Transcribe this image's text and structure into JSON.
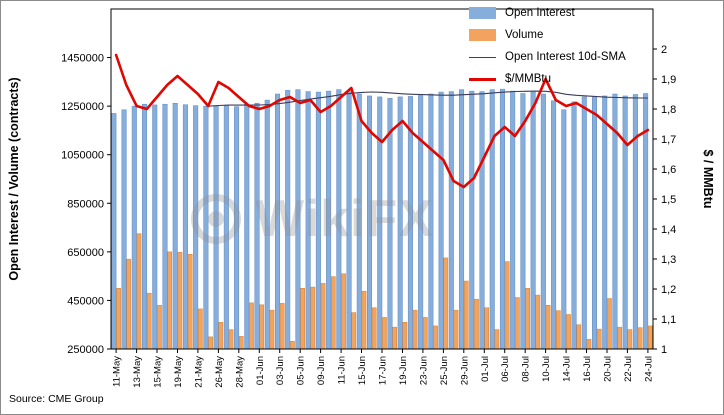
{
  "source": "Source: CME Group",
  "watermark": "WikiFX",
  "legend": {
    "items": [
      {
        "label": "Open Interest",
        "swatch": "patch",
        "color": "#85AEDD"
      },
      {
        "label": "Volume",
        "swatch": "patch",
        "color": "#F2A45F"
      },
      {
        "label": "Open Interest 10d-SMA",
        "swatch": "thinline",
        "color": "#3C3C5C"
      },
      {
        "label": "$/MMBtu",
        "swatch": "thickline",
        "color": "#E10600"
      }
    ]
  },
  "chart_data": {
    "type": "combo",
    "title": "",
    "legend_position": "upper right",
    "grid": false,
    "x_tick_labels_every": 2,
    "categories": [
      "11-May",
      "12-May",
      "13-May",
      "14-May",
      "15-May",
      "18-May",
      "19-May",
      "20-May",
      "21-May",
      "22-May",
      "26-May",
      "27-May",
      "28-May",
      "29-May",
      "01-Jun",
      "02-Jun",
      "03-Jun",
      "04-Jun",
      "05-Jun",
      "08-Jun",
      "09-Jun",
      "10-Jun",
      "11-Jun",
      "12-Jun",
      "15-Jun",
      "16-Jun",
      "17-Jun",
      "18-Jun",
      "19-Jun",
      "22-Jun",
      "23-Jun",
      "24-Jun",
      "25-Jun",
      "26-Jun",
      "29-Jun",
      "30-Jun",
      "01-Jul",
      "02-Jul",
      "06-Jul",
      "07-Jul",
      "08-Jul",
      "09-Jul",
      "10-Jul",
      "13-Jul",
      "14-Jul",
      "15-Jul",
      "16-Jul",
      "17-Jul",
      "20-Jul",
      "21-Jul",
      "22-Jul",
      "23-Jul",
      "24-Jul"
    ],
    "left_axis": {
      "label": "Open Interest / Volume (contracts)",
      "min": 250000,
      "max": 1650000,
      "tick_values": [
        250000,
        450000,
        650000,
        850000,
        1050000,
        1250000,
        1450000
      ]
    },
    "right_axis": {
      "label": "$ / MMBtu",
      "min": 1,
      "max": 2.1333,
      "tick_values": [
        1,
        1.1,
        1.2,
        1.3,
        1.4,
        1.5,
        1.6,
        1.7,
        1.8,
        1.9,
        2
      ],
      "tick_labels": [
        "1",
        "1,1",
        "1,2",
        "1,3",
        "1,4",
        "1,5",
        "1,6",
        "1,7",
        "1,8",
        "1,9",
        "2"
      ]
    },
    "series": [
      {
        "name": "Open Interest",
        "type": "bar",
        "axis": "left",
        "color": "#85AEDD",
        "edge": "#5E88BE",
        "values": [
          1220000,
          1235000,
          1250000,
          1258000,
          1255000,
          1258000,
          1262000,
          1256000,
          1252000,
          1250000,
          1250000,
          1252000,
          1248000,
          1258000,
          1262000,
          1275000,
          1300000,
          1315000,
          1318000,
          1310000,
          1308000,
          1312000,
          1318000,
          1310000,
          1300000,
          1292000,
          1288000,
          1282000,
          1288000,
          1290000,
          1294000,
          1300000,
          1308000,
          1310000,
          1318000,
          1312000,
          1310000,
          1318000,
          1320000,
          1312000,
          1302000,
          1308000,
          1300000,
          1272000,
          1235000,
          1268000,
          1288000,
          1290000,
          1292000,
          1300000,
          1292000,
          1298000,
          1302000
        ]
      },
      {
        "name": "Volume",
        "type": "bar",
        "axis": "left",
        "color": "#F2A45F",
        "edge": "#D08035",
        "values": [
          500000,
          620000,
          725000,
          480000,
          430000,
          650000,
          648000,
          640000,
          415000,
          300000,
          360000,
          330000,
          302000,
          440000,
          432000,
          410000,
          438000,
          282000,
          500000,
          505000,
          520000,
          548000,
          560000,
          400000,
          488000,
          420000,
          380000,
          340000,
          360000,
          410000,
          380000,
          345000,
          625000,
          410000,
          530000,
          455000,
          420000,
          330000,
          610000,
          462000,
          500000,
          472000,
          430000,
          408000,
          392000,
          350000,
          290000,
          332000,
          458000,
          340000,
          330000,
          338000,
          345000
        ]
      },
      {
        "name": "Open Interest 10d-SMA",
        "type": "line",
        "axis": "left",
        "color": "#3C3C5C",
        "width": 1.1,
        "derived": "sma",
        "window": 10,
        "of": "Open Interest"
      },
      {
        "name": "$/MMBtu",
        "type": "line",
        "axis": "right",
        "color": "#E10600",
        "width": 2.6,
        "values": [
          1.98,
          1.88,
          1.81,
          1.8,
          1.84,
          1.88,
          1.91,
          1.88,
          1.85,
          1.81,
          1.89,
          1.87,
          1.84,
          1.81,
          1.8,
          1.81,
          1.83,
          1.84,
          1.82,
          1.83,
          1.79,
          1.81,
          1.84,
          1.87,
          1.76,
          1.72,
          1.69,
          1.73,
          1.76,
          1.72,
          1.69,
          1.66,
          1.63,
          1.56,
          1.54,
          1.57,
          1.64,
          1.71,
          1.74,
          1.71,
          1.76,
          1.82,
          1.9,
          1.83,
          1.81,
          1.82,
          1.8,
          1.78,
          1.75,
          1.72,
          1.68,
          1.71,
          1.73
        ]
      }
    ]
  }
}
